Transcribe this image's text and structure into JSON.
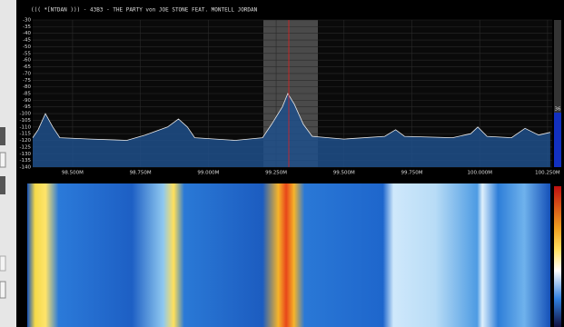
{
  "spectrum": {
    "title": "((( *[NTDAN ))) - 43B3 - THE PARTY von JOE STONE FEAT. MONTELL JORDAN",
    "ylim": [
      -30,
      -140
    ],
    "yticks": [
      -30,
      -35,
      -40,
      -45,
      -50,
      -55,
      -60,
      -65,
      -70,
      -75,
      -80,
      -85,
      -90,
      -95,
      -100,
      -105,
      -110,
      -115,
      -120,
      -125,
      -130,
      -135,
      -140
    ],
    "xlim": [
      98.353,
      100.267
    ],
    "xticks": [
      {
        "value": 98.5,
        "label": "98.500M"
      },
      {
        "value": 98.75,
        "label": "98.750M"
      },
      {
        "value": 99.0,
        "label": "99.000M"
      },
      {
        "value": 99.25,
        "label": "99.250M"
      },
      {
        "value": 99.5,
        "label": "99.500M"
      },
      {
        "value": 99.75,
        "label": "99.750M"
      },
      {
        "value": 100.0,
        "label": "100.000M"
      },
      {
        "value": 100.25,
        "label": "100.250M"
      }
    ],
    "trace": {
      "x": [
        98.353,
        98.373,
        98.4,
        98.427,
        98.453,
        98.567,
        98.7,
        98.767,
        98.85,
        98.89,
        98.923,
        98.95,
        99.1,
        99.2,
        99.233,
        99.273,
        99.293,
        99.317,
        99.35,
        99.383,
        99.5,
        99.65,
        99.69,
        99.723,
        99.9,
        99.967,
        99.993,
        100.027,
        100.117,
        100.167,
        100.217,
        100.26
      ],
      "values": [
        -118,
        -112,
        -100,
        -110,
        -118,
        -119,
        -120,
        -116,
        -110,
        -104,
        -110,
        -118,
        -120,
        -118,
        -108,
        -95,
        -85,
        -93,
        -108,
        -117,
        -119,
        -117,
        -112,
        -117,
        -118,
        -115,
        -110,
        -117,
        -118,
        -111,
        -116,
        -114
      ]
    },
    "level": "36"
  }
}
